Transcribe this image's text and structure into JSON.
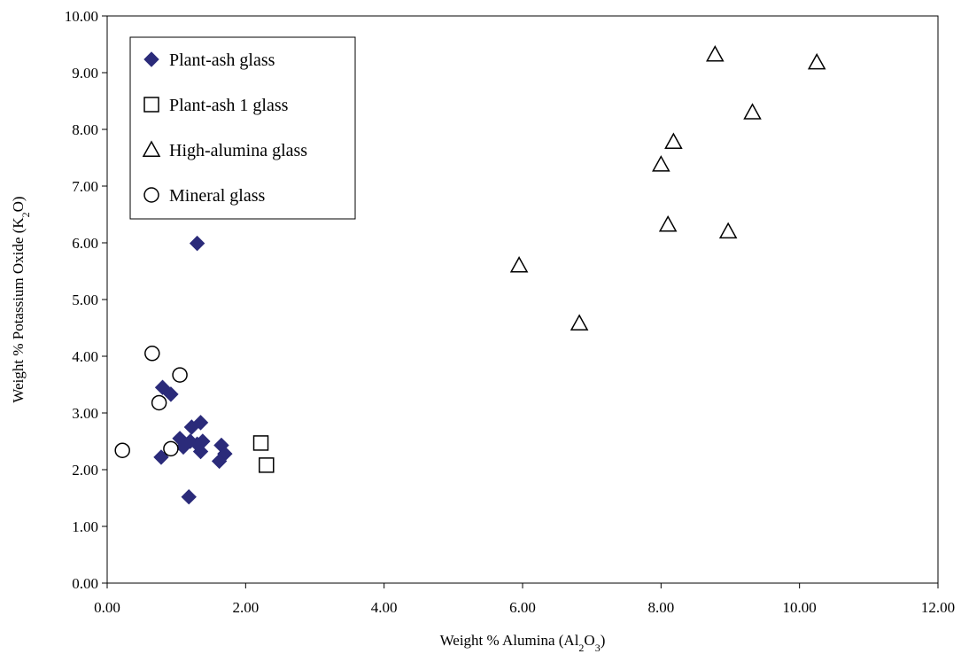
{
  "chart_data": {
    "type": "scatter",
    "title": "",
    "xlabel": {
      "parts": [
        "Weight % Alumina (Al",
        "2",
        "O",
        "3",
        ")"
      ]
    },
    "ylabel": {
      "parts": [
        "Weight % Potassium Oxide (K",
        "2",
        "O)"
      ]
    },
    "xlim": [
      0,
      12
    ],
    "ylim": [
      0,
      10
    ],
    "xticks": [
      "0.00",
      "2.00",
      "4.00",
      "6.00",
      "8.00",
      "10.00",
      "12.00"
    ],
    "yticks": [
      "0.00",
      "1.00",
      "2.00",
      "3.00",
      "4.00",
      "5.00",
      "6.00",
      "7.00",
      "8.00",
      "9.00",
      "10.00"
    ],
    "grid": false,
    "legend_position": "top-left",
    "series": [
      {
        "name": "Plant-ash glass",
        "marker": "diamond-filled",
        "color": "#2b2b7a",
        "points": [
          [
            1.3,
            5.99
          ],
          [
            0.8,
            3.45
          ],
          [
            0.92,
            3.33
          ],
          [
            1.35,
            2.83
          ],
          [
            1.22,
            2.75
          ],
          [
            1.05,
            2.55
          ],
          [
            1.2,
            2.5
          ],
          [
            1.3,
            2.45
          ],
          [
            1.38,
            2.5
          ],
          [
            1.1,
            2.4
          ],
          [
            1.65,
            2.43
          ],
          [
            1.7,
            2.28
          ],
          [
            1.35,
            2.32
          ],
          [
            1.62,
            2.15
          ],
          [
            0.78,
            2.22
          ],
          [
            1.18,
            1.52
          ]
        ]
      },
      {
        "name": "Plant-ash 1 glass",
        "marker": "square-open",
        "color": "#000000",
        "points": [
          [
            2.22,
            2.47
          ],
          [
            2.3,
            2.08
          ]
        ]
      },
      {
        "name": "High-alumina glass",
        "marker": "triangle-open",
        "color": "#000000",
        "points": [
          [
            8.78,
            9.32
          ],
          [
            10.25,
            9.18
          ],
          [
            9.32,
            8.3
          ],
          [
            8.18,
            7.78
          ],
          [
            8.0,
            7.38
          ],
          [
            8.1,
            6.32
          ],
          [
            8.97,
            6.2
          ],
          [
            5.95,
            5.6
          ],
          [
            6.82,
            4.58
          ]
        ]
      },
      {
        "name": "Mineral glass",
        "marker": "circle-open",
        "color": "#000000",
        "points": [
          [
            0.65,
            4.05
          ],
          [
            1.05,
            3.67
          ],
          [
            0.75,
            3.18
          ],
          [
            0.92,
            2.37
          ],
          [
            0.22,
            2.34
          ]
        ]
      }
    ]
  }
}
